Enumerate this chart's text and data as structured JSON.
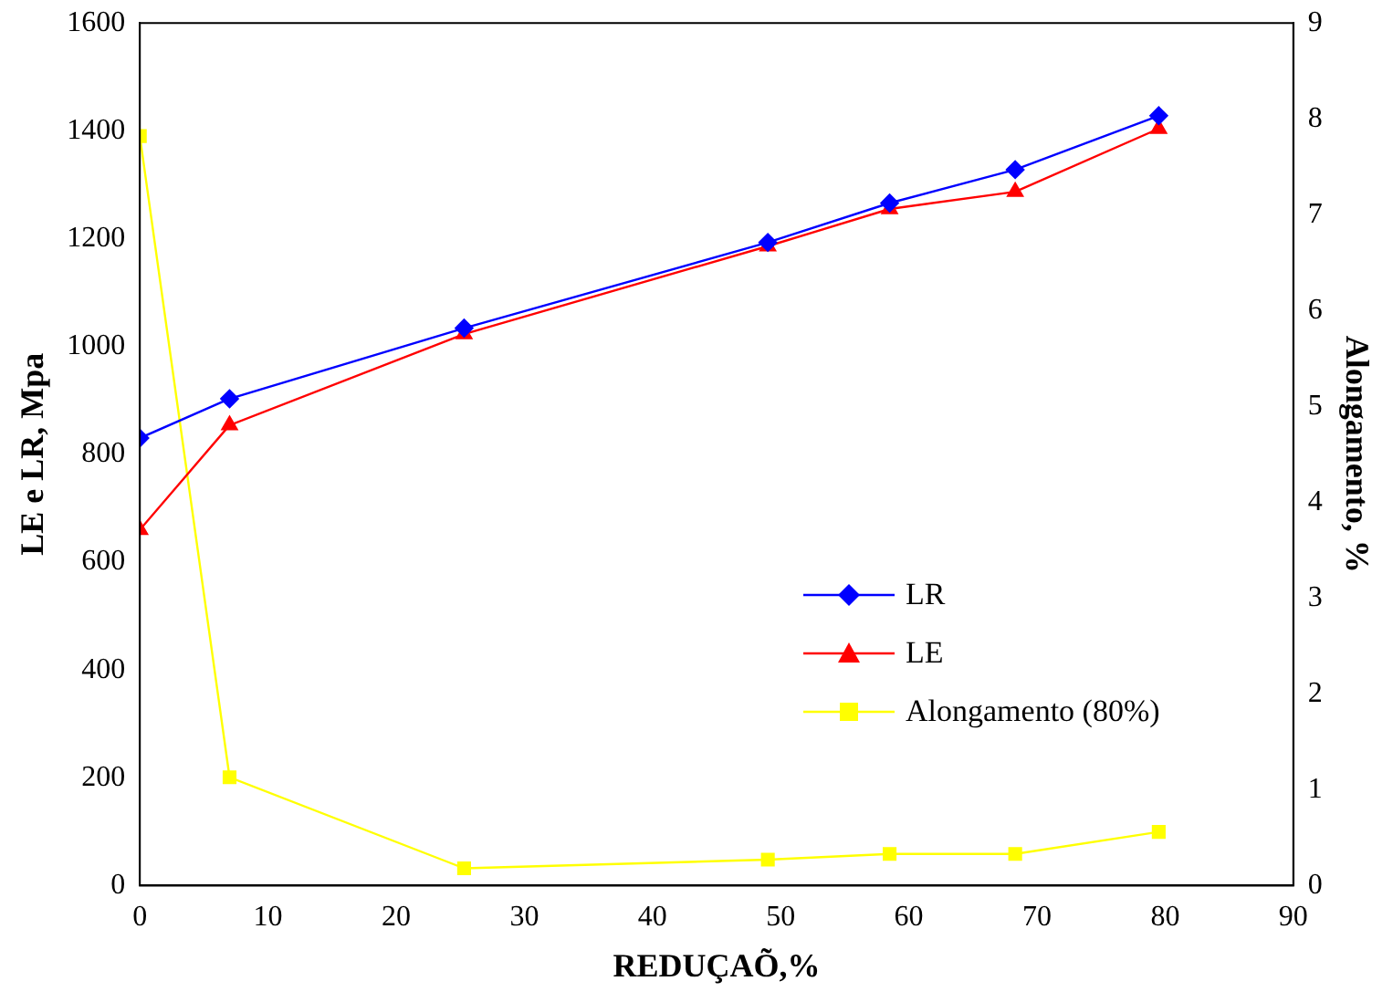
{
  "chart_data": {
    "type": "line",
    "xlabel": "REDUÇAÕ,%",
    "ylabel": "LE e LR, Mpa",
    "y2label": "Alongamento, %",
    "x": [
      0,
      7,
      25.3,
      49,
      58.5,
      68.3,
      79.5
    ],
    "xlim": [
      0,
      90
    ],
    "xticks": [
      0,
      10,
      20,
      30,
      40,
      50,
      60,
      70,
      80,
      90
    ],
    "ylim": [
      0,
      1600
    ],
    "yticks": [
      0,
      200,
      400,
      600,
      800,
      1000,
      1200,
      1400,
      1600
    ],
    "y2lim": [
      0,
      9
    ],
    "y2ticks": [
      0,
      1,
      2,
      3,
      4,
      5,
      6,
      7,
      8,
      9
    ],
    "grid": false,
    "legend": "right",
    "line_style": "solid",
    "series": [
      {
        "name": "LR",
        "color": "#0000ff",
        "marker": "diamond",
        "values": [
          830,
          903,
          1034,
          1193,
          1266,
          1328,
          1428
        ]
      },
      {
        "name": "LE",
        "color": "#ff0000",
        "marker": "triangle",
        "values": [
          660,
          854,
          1023,
          1186,
          1255,
          1287,
          1404
        ]
      },
      {
        "name": "Alongamento (80%)",
        "color": "#ffff00",
        "marker": "square",
        "axis": "y2",
        "values": [
          7.82,
          1.13,
          0.18,
          0.27,
          0.33,
          0.33,
          0.56
        ]
      }
    ]
  }
}
